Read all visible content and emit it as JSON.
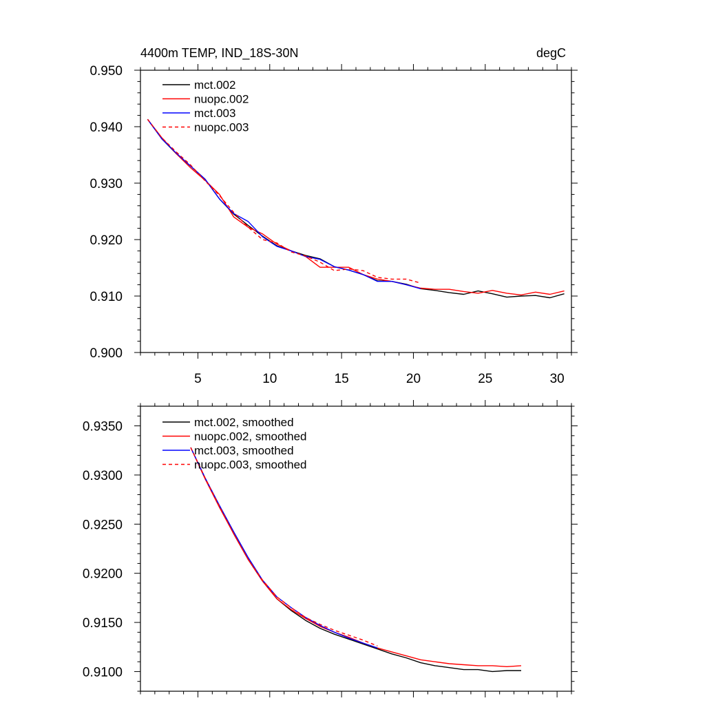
{
  "chart_data": [
    {
      "type": "line",
      "title_left": "4400m TEMP, IND_18S-30N",
      "title_right": "degC",
      "xlim": [
        1,
        31
      ],
      "ylim": [
        0.9,
        0.95
      ],
      "xticks": [
        5,
        10,
        15,
        20,
        25,
        30
      ],
      "xticklabels": [
        "5",
        "10",
        "15",
        "20",
        "25",
        "30"
      ],
      "yticks": [
        0.9,
        0.91,
        0.92,
        0.93,
        0.94,
        0.95
      ],
      "yticklabels": [
        "0.900",
        "0.910",
        "0.920",
        "0.930",
        "0.940",
        "0.950"
      ],
      "legend_position": "top-left",
      "series": [
        {
          "name": "mct.002",
          "color": "#000000",
          "dash": false,
          "x": [
            1.5,
            2.5,
            3.5,
            4.5,
            5.5,
            6.5,
            7.5,
            8.5,
            9.5,
            10.5,
            11.5,
            12.5,
            13.5,
            14.5,
            15.5,
            16.5,
            17.5,
            18.5,
            19.5,
            20.5,
            21.5,
            22.5,
            23.5,
            24.5,
            25.5,
            26.5,
            27.5,
            28.5,
            29.5,
            30.5
          ],
          "y": [
            0.9413,
            0.9378,
            0.9352,
            0.933,
            0.9307,
            0.9272,
            0.9245,
            0.9225,
            0.9206,
            0.9189,
            0.918,
            0.9172,
            0.9166,
            0.9152,
            0.9146,
            0.9138,
            0.9127,
            0.9126,
            0.9121,
            0.9113,
            0.911,
            0.9106,
            0.9103,
            0.9109,
            0.9104,
            0.9098,
            0.91,
            0.9101,
            0.9097,
            0.9104
          ]
        },
        {
          "name": "nuopc.002",
          "color": "#ff0000",
          "dash": false,
          "x": [
            1.5,
            2.5,
            3.5,
            4.5,
            5.5,
            6.5,
            7.5,
            8.5,
            9.5,
            10.5,
            11.5,
            12.5,
            13.5,
            14.5,
            15.5,
            16.5,
            17.5,
            18.5,
            19.5,
            20.5,
            21.5,
            22.5,
            23.5,
            24.5,
            25.5,
            26.5,
            27.5,
            28.5,
            29.5,
            30.5
          ],
          "y": [
            0.9413,
            0.938,
            0.9352,
            0.9327,
            0.9305,
            0.928,
            0.924,
            0.9222,
            0.921,
            0.9192,
            0.918,
            0.917,
            0.9151,
            0.9151,
            0.9151,
            0.9138,
            0.913,
            0.9126,
            0.912,
            0.9114,
            0.9112,
            0.9112,
            0.9108,
            0.9105,
            0.911,
            0.9105,
            0.9102,
            0.9107,
            0.9103,
            0.9109
          ]
        },
        {
          "name": "mct.003",
          "color": "#0000ff",
          "dash": false,
          "x": [
            1.5,
            2.5,
            3.5,
            4.5,
            5.5,
            6.5,
            7.5,
            8.5,
            9.5,
            10.5,
            11.5,
            12.5,
            13.5,
            14.5,
            15.5,
            16.5,
            17.5,
            18.5,
            19.5,
            20.5
          ],
          "y": [
            0.9413,
            0.9378,
            0.9353,
            0.933,
            0.9307,
            0.9272,
            0.9246,
            0.9232,
            0.9205,
            0.9188,
            0.918,
            0.917,
            0.9165,
            0.9152,
            0.9146,
            0.9138,
            0.9126,
            0.9126,
            0.912,
            0.9113
          ]
        },
        {
          "name": "nuopc.003",
          "color": "#ff0000",
          "dash": true,
          "x": [
            1.5,
            2.5,
            3.5,
            4.5,
            5.5,
            6.5,
            7.5,
            8.5,
            9.5,
            10.5,
            11.5,
            12.5,
            13.5,
            14.5,
            15.5,
            16.5,
            17.5,
            18.5,
            19.5,
            20.5
          ],
          "y": [
            0.9413,
            0.938,
            0.9355,
            0.9332,
            0.9304,
            0.9278,
            0.9248,
            0.9222,
            0.92,
            0.9194,
            0.9178,
            0.9171,
            0.916,
            0.9145,
            0.9148,
            0.9145,
            0.9133,
            0.913,
            0.913,
            0.9123
          ]
        }
      ]
    },
    {
      "type": "line",
      "xlim": [
        1,
        31
      ],
      "ylim": [
        0.908,
        0.937
      ],
      "xticks": [
        5,
        10,
        15,
        20,
        25,
        30
      ],
      "xticklabels": [],
      "yticks": [
        0.91,
        0.915,
        0.92,
        0.925,
        0.93,
        0.935
      ],
      "yticklabels": [
        "0.9100",
        "0.9150",
        "0.9200",
        "0.9250",
        "0.9300",
        "0.9350"
      ],
      "legend_position": "top-left",
      "series": [
        {
          "name": "mct.002, smoothed",
          "color": "#000000",
          "dash": false,
          "x": [
            4.5,
            5.5,
            6.5,
            7.5,
            8.5,
            9.5,
            10.5,
            11.5,
            12.5,
            13.5,
            14.5,
            15.5,
            16.5,
            17.5,
            18.5,
            19.5,
            20.5,
            21.5,
            22.5,
            23.5,
            24.5,
            25.5,
            26.5,
            27.5
          ],
          "y": [
            0.9328,
            0.9297,
            0.9268,
            0.924,
            0.9214,
            0.9192,
            0.9174,
            0.9162,
            0.9152,
            0.9144,
            0.9138,
            0.9133,
            0.9128,
            0.9123,
            0.9118,
            0.9114,
            0.9109,
            0.9106,
            0.9104,
            0.9102,
            0.9102,
            0.91,
            0.9101,
            0.9101
          ]
        },
        {
          "name": "nuopc.002, smoothed",
          "color": "#ff0000",
          "dash": false,
          "x": [
            4.5,
            5.5,
            6.5,
            7.5,
            8.5,
            9.5,
            10.5,
            11.5,
            12.5,
            13.5,
            14.5,
            15.5,
            16.5,
            17.5,
            18.5,
            19.5,
            20.5,
            21.5,
            22.5,
            23.5,
            24.5,
            25.5,
            26.5,
            27.5
          ],
          "y": [
            0.9328,
            0.9296,
            0.9267,
            0.924,
            0.9214,
            0.9192,
            0.9174,
            0.9163,
            0.9154,
            0.9146,
            0.914,
            0.9135,
            0.9129,
            0.9124,
            0.912,
            0.9116,
            0.9112,
            0.911,
            0.9108,
            0.9107,
            0.9106,
            0.9106,
            0.9105,
            0.9106
          ]
        },
        {
          "name": "mct.003, smoothed",
          "color": "#0000ff",
          "dash": false,
          "x": [
            4.5,
            5.5,
            6.5,
            7.5,
            8.5,
            9.5,
            10.5,
            11.5,
            12.5,
            13.5,
            14.5,
            15.5,
            16.5,
            17.5
          ],
          "y": [
            0.9328,
            0.9297,
            0.9269,
            0.9242,
            0.9216,
            0.9193,
            0.9176,
            0.9165,
            0.9155,
            0.9147,
            0.914,
            0.9134,
            0.9129,
            0.9124
          ]
        },
        {
          "name": "nuopc.003, smoothed",
          "color": "#ff0000",
          "dash": true,
          "x": [
            4.5,
            5.5,
            6.5,
            7.5,
            8.5,
            9.5,
            10.5,
            11.5,
            12.5,
            13.5,
            14.5,
            15.5,
            16.5,
            17.5
          ],
          "y": [
            0.9328,
            0.9297,
            0.9268,
            0.924,
            0.9214,
            0.9193,
            0.9176,
            0.9165,
            0.9155,
            0.9148,
            0.9142,
            0.9137,
            0.9132,
            0.9126
          ]
        }
      ]
    }
  ]
}
